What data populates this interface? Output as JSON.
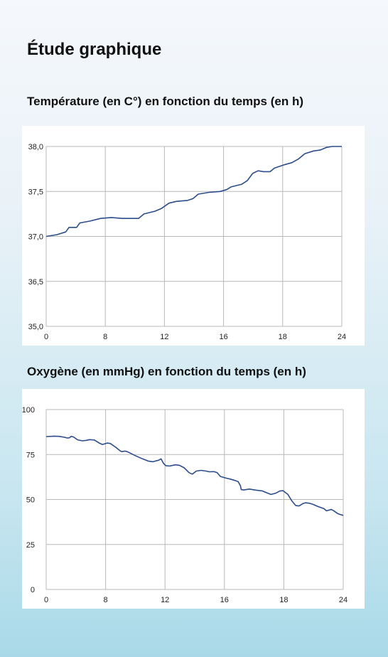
{
  "page": {
    "title": "Étude graphique"
  },
  "chart_data": [
    {
      "type": "line",
      "title": "Température (en C°) en fonction du temps (en h)",
      "xlabel": "",
      "ylabel": "",
      "x_ticks": [
        0,
        8,
        12,
        16,
        18,
        24
      ],
      "y_ticks": [
        "35,0",
        "36,5",
        "37,0",
        "37,5",
        "38,0"
      ],
      "grid": true,
      "series": [
        {
          "values": [
            [
              0,
              37.0
            ],
            [
              1,
              37.02
            ],
            [
              1.8,
              37.05
            ],
            [
              2.1,
              37.1
            ],
            [
              2.8,
              37.1
            ],
            [
              3.1,
              37.15
            ],
            [
              4,
              37.17
            ],
            [
              5,
              37.2
            ],
            [
              6,
              37.21
            ],
            [
              7,
              37.2
            ],
            [
              8,
              37.2
            ],
            [
              8.5,
              37.2
            ],
            [
              9,
              37.25
            ],
            [
              10,
              37.28
            ],
            [
              10.6,
              37.31
            ],
            [
              11.3,
              37.37
            ],
            [
              12,
              37.39
            ],
            [
              13,
              37.4
            ],
            [
              13.5,
              37.42
            ],
            [
              14,
              37.47
            ],
            [
              15,
              37.49
            ],
            [
              16,
              37.5
            ],
            [
              16.6,
              37.52
            ],
            [
              17,
              37.55
            ],
            [
              18,
              37.58
            ],
            [
              18.5,
              37.62
            ],
            [
              19,
              37.7
            ],
            [
              19.5,
              37.73
            ],
            [
              20,
              37.72
            ],
            [
              20.6,
              37.72
            ],
            [
              21,
              37.76
            ],
            [
              22,
              37.8
            ],
            [
              22.6,
              37.82
            ],
            [
              23.2,
              37.86
            ],
            [
              23.8,
              37.92
            ],
            [
              24.6,
              37.95
            ],
            [
              25.2,
              37.96
            ],
            [
              25.8,
              37.99
            ],
            [
              26.3,
              38.02
            ],
            [
              26.8,
              38.02
            ],
            [
              27.2,
              38.0
            ]
          ]
        }
      ]
    },
    {
      "type": "line",
      "title": "Oxygène (en mmHg) en fonction du temps (en h)",
      "xlabel": "",
      "ylabel": "",
      "x_ticks": [
        0,
        8,
        12,
        16,
        18,
        24
      ],
      "y_ticks": [
        "0",
        "25",
        "50",
        "75",
        "100"
      ],
      "grid": true,
      "series": [
        {
          "values": [
            [
              0,
              85
            ],
            [
              1,
              85.2
            ],
            [
              1.6,
              85.1
            ],
            [
              2.3,
              84.6
            ],
            [
              2.6,
              84.2
            ],
            [
              2.9,
              84.3
            ],
            [
              3.1,
              85.1
            ],
            [
              3.4,
              84.8
            ],
            [
              3.9,
              83.2
            ],
            [
              4.5,
              82.6
            ],
            [
              5,
              82.9
            ],
            [
              5.4,
              83.3
            ],
            [
              6,
              83.1
            ],
            [
              6.6,
              81.4
            ],
            [
              7,
              80.6
            ],
            [
              7.6,
              81.4
            ],
            [
              8,
              81.1
            ],
            [
              8.7,
              78.9
            ],
            [
              9.2,
              77.1
            ],
            [
              9.4,
              76.6
            ],
            [
              9.8,
              76.9
            ],
            [
              10.1,
              76.6
            ],
            [
              11.1,
              74.4
            ],
            [
              12,
              72.6
            ],
            [
              12.7,
              71.4
            ],
            [
              13.3,
              71.0
            ],
            [
              13.6,
              71.4
            ],
            [
              14,
              71.8
            ],
            [
              14.3,
              72.6
            ],
            [
              14.6,
              70.2
            ],
            [
              14.9,
              68.8
            ],
            [
              15.4,
              68.6
            ],
            [
              16.1,
              69.3
            ],
            [
              16.6,
              69.0
            ],
            [
              17.2,
              67.6
            ],
            [
              17.8,
              64.9
            ],
            [
              18.2,
              64.1
            ],
            [
              18.7,
              65.8
            ],
            [
              19.3,
              66.2
            ],
            [
              19.9,
              65.8
            ],
            [
              20.3,
              65.4
            ],
            [
              20.9,
              65.5
            ],
            [
              21.3,
              64.9
            ],
            [
              21.7,
              62.8
            ],
            [
              22.4,
              61.9
            ],
            [
              22.9,
              61.4
            ],
            [
              23.5,
              60.6
            ],
            [
              23.9,
              60.0
            ],
            [
              24.2,
              57.6
            ],
            [
              24.3,
              55.5
            ],
            [
              24.6,
              55.3
            ],
            [
              25.3,
              55.8
            ],
            [
              26.1,
              55.2
            ],
            [
              26.9,
              54.8
            ],
            [
              27.6,
              53.5
            ],
            [
              28,
              52.8
            ],
            [
              28.6,
              53.5
            ],
            [
              29.1,
              54.7
            ],
            [
              29.5,
              54.9
            ],
            [
              30.1,
              52.9
            ],
            [
              30.6,
              49.2
            ],
            [
              31.1,
              46.6
            ],
            [
              31.5,
              46.4
            ],
            [
              32,
              47.8
            ],
            [
              32.3,
              48.2
            ],
            [
              32.8,
              47.9
            ],
            [
              33.3,
              47.2
            ],
            [
              33.8,
              46.2
            ],
            [
              34.3,
              45.4
            ],
            [
              34.6,
              44.9
            ],
            [
              34.9,
              43.7
            ],
            [
              35.3,
              44.2
            ],
            [
              35.5,
              44.5
            ],
            [
              35.8,
              43.8
            ],
            [
              36.3,
              42.2
            ],
            [
              36.6,
              41.7
            ],
            [
              37,
              41.2
            ]
          ]
        }
      ]
    }
  ]
}
